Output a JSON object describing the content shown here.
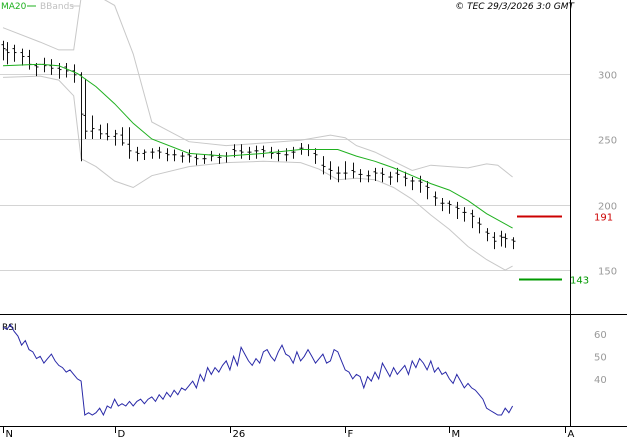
{
  "header": {
    "legend_ma": "MA20",
    "legend_bb": "BBands",
    "copyright": "© TEC 29/3/2026 3:0 GMT"
  },
  "colors": {
    "ma20": "#1fb01f",
    "bbands": "#c8c8c8",
    "price_bars": "#111111",
    "rsi": "#2a2aa8",
    "resistance": "#cc0000",
    "support": "#009900",
    "grid": "#d4d4d4",
    "axis": "#000000",
    "tick_text": "#999999"
  },
  "chart_data": [
    {
      "type": "line",
      "name": "price-panel",
      "y_ticks": [
        150,
        200,
        250,
        300
      ],
      "ylim": [
        118,
        350
      ],
      "x_tick_labels": [
        "N",
        "D",
        "26",
        "F",
        "M",
        "A"
      ],
      "x_tick_days": [
        0,
        30,
        61,
        92,
        120,
        151
      ],
      "series": [
        {
          "name": "MA20",
          "x": [
            0,
            10,
            15,
            20,
            25,
            30,
            35,
            40,
            50,
            60,
            70,
            80,
            90,
            95,
            100,
            105,
            110,
            115,
            120,
            125,
            130,
            137
          ],
          "values": [
            306,
            307,
            306,
            300,
            290,
            277,
            262,
            250,
            239,
            237,
            239,
            242,
            242,
            237,
            233,
            228,
            222,
            216,
            211,
            203,
            193,
            182
          ]
        },
        {
          "name": "BBands upper",
          "x": [
            0,
            10,
            15,
            19,
            21,
            25,
            30,
            35,
            40,
            50,
            60,
            70,
            80,
            88,
            92,
            95,
            100,
            105,
            110,
            115,
            120,
            125,
            130,
            133,
            137
          ],
          "values": [
            335,
            324,
            318,
            318,
            358,
            360,
            352,
            315,
            263,
            248,
            245,
            247,
            249,
            253,
            251,
            245,
            240,
            233,
            226,
            230,
            229,
            228,
            231,
            230,
            221
          ]
        },
        {
          "name": "BBands lower",
          "x": [
            0,
            10,
            15,
            19,
            21,
            25,
            30,
            35,
            40,
            50,
            60,
            70,
            80,
            85,
            90,
            95,
            100,
            105,
            110,
            115,
            120,
            125,
            130,
            135,
            137
          ],
          "values": [
            297,
            298,
            295,
            283,
            235,
            229,
            218,
            213,
            222,
            229,
            232,
            233,
            232,
            227,
            219,
            220,
            219,
            213,
            204,
            192,
            181,
            168,
            158,
            150,
            153
          ]
        }
      ],
      "ohlc": {
        "x": [
          0,
          1,
          3,
          5,
          7,
          9,
          11,
          13,
          15,
          17,
          19,
          21,
          22,
          24,
          26,
          28,
          30,
          32,
          34,
          36,
          38,
          40,
          42,
          44,
          46,
          48,
          50,
          52,
          54,
          56,
          58,
          60,
          62,
          64,
          66,
          68,
          70,
          72,
          74,
          76,
          78,
          80,
          82,
          84,
          86,
          88,
          90,
          92,
          94,
          96,
          98,
          100,
          102,
          104,
          106,
          108,
          110,
          112,
          114,
          116,
          118,
          120,
          122,
          124,
          126,
          128,
          130,
          132,
          134,
          135,
          137
        ],
        "open": [
          322,
          318,
          319,
          316,
          313,
          306,
          307,
          306,
          304,
          305,
          302,
          299,
          268,
          256,
          257,
          254,
          252,
          253,
          246,
          240,
          239,
          240,
          241,
          239,
          238,
          237,
          238,
          236,
          235,
          238,
          236,
          237,
          242,
          241,
          240,
          241,
          242,
          240,
          239,
          238,
          240,
          243,
          242,
          239,
          230,
          227,
          224,
          224,
          226,
          223,
          222,
          225,
          224,
          221,
          224,
          221,
          218,
          218,
          214,
          206,
          201,
          201,
          198,
          194,
          193,
          186,
          179,
          175,
          176,
          175,
          173
        ],
        "high": [
          325,
          324,
          322,
          319,
          318,
          308,
          312,
          311,
          308,
          308,
          307,
          301,
          296,
          268,
          261,
          262,
          257,
          259,
          259,
          244,
          242,
          243,
          244,
          243,
          242,
          240,
          242,
          239,
          238,
          241,
          239,
          240,
          246,
          246,
          244,
          245,
          245,
          244,
          242,
          243,
          244,
          247,
          246,
          243,
          237,
          233,
          229,
          233,
          232,
          227,
          226,
          228,
          228,
          225,
          228,
          225,
          221,
          222,
          218,
          210,
          205,
          203,
          202,
          198,
          196,
          190,
          182,
          179,
          180,
          178,
          175
        ],
        "low": [
          310,
          307,
          309,
          306,
          303,
          298,
          301,
          299,
          296,
          297,
          293,
          233,
          250,
          250,
          250,
          249,
          245,
          245,
          235,
          233,
          234,
          235,
          235,
          233,
          233,
          232,
          232,
          230,
          231,
          233,
          231,
          232,
          236,
          235,
          234,
          235,
          236,
          235,
          233,
          233,
          235,
          238,
          237,
          231,
          223,
          219,
          217,
          219,
          220,
          217,
          217,
          218,
          217,
          215,
          217,
          214,
          211,
          209,
          204,
          199,
          195,
          193,
          189,
          187,
          182,
          178,
          172,
          166,
          168,
          167,
          166
        ],
        "close": [
          319,
          316,
          316,
          313,
          307,
          305,
          306,
          304,
          303,
          302,
          299,
          269,
          256,
          258,
          254,
          252,
          254,
          247,
          241,
          239,
          240,
          240,
          240,
          238,
          238,
          237,
          237,
          235,
          235,
          237,
          236,
          237,
          241,
          240,
          240,
          241,
          241,
          239,
          239,
          238,
          240,
          243,
          242,
          238,
          229,
          226,
          224,
          224,
          225,
          223,
          222,
          224,
          223,
          221,
          223,
          220,
          218,
          217,
          213,
          205,
          201,
          200,
          197,
          194,
          191,
          185,
          178,
          172,
          175,
          174,
          172
        ]
      },
      "levels": [
        {
          "name": "resistance",
          "value": 191,
          "label": "191"
        },
        {
          "name": "support",
          "value": 143,
          "label": "143"
        }
      ]
    },
    {
      "type": "line",
      "name": "rsi-panel",
      "label": "RSI",
      "y_ticks": [
        40,
        50,
        60
      ],
      "ylim": [
        20,
        67
      ],
      "series": [
        {
          "name": "RSI",
          "x": [
            0,
            1,
            2,
            3,
            4,
            5,
            6,
            7,
            8,
            9,
            10,
            11,
            12,
            13,
            14,
            15,
            16,
            17,
            18,
            19,
            20,
            21,
            22,
            23,
            24,
            25,
            26,
            27,
            28,
            29,
            30,
            31,
            32,
            33,
            34,
            35,
            36,
            37,
            38,
            39,
            40,
            41,
            42,
            43,
            44,
            45,
            46,
            47,
            48,
            49,
            50,
            51,
            52,
            53,
            54,
            55,
            56,
            57,
            58,
            59,
            60,
            61,
            62,
            63,
            64,
            65,
            66,
            67,
            68,
            69,
            70,
            71,
            72,
            73,
            74,
            75,
            76,
            77,
            78,
            79,
            80,
            81,
            82,
            83,
            84,
            85,
            86,
            87,
            88,
            89,
            90,
            91,
            92,
            93,
            94,
            95,
            96,
            97,
            98,
            99,
            100,
            101,
            102,
            103,
            104,
            105,
            106,
            107,
            108,
            109,
            110,
            111,
            112,
            113,
            114,
            115,
            116,
            117,
            118,
            119,
            120,
            121,
            122,
            123,
            124,
            125,
            126,
            127,
            128,
            129,
            130,
            131,
            132,
            133,
            134,
            135,
            136,
            137
          ],
          "values": [
            63,
            62,
            64,
            61,
            59,
            55,
            57,
            53,
            52,
            49,
            50,
            47,
            49,
            51,
            48,
            46,
            45,
            43,
            44,
            42,
            40,
            39,
            24,
            25,
            24,
            25,
            27,
            24,
            28,
            27,
            31,
            28,
            29,
            28,
            30,
            28,
            30,
            31,
            29,
            31,
            32,
            30,
            33,
            31,
            34,
            32,
            35,
            33,
            36,
            35,
            37,
            39,
            36,
            42,
            39,
            45,
            42,
            45,
            43,
            46,
            48,
            44,
            50,
            46,
            54,
            51,
            48,
            46,
            49,
            47,
            52,
            53,
            50,
            48,
            52,
            55,
            51,
            50,
            47,
            52,
            48,
            50,
            53,
            50,
            47,
            49,
            51,
            47,
            48,
            53,
            52,
            48,
            44,
            43,
            40,
            42,
            41,
            36,
            41,
            39,
            43,
            40,
            47,
            44,
            41,
            45,
            42,
            44,
            46,
            42,
            48,
            45,
            49,
            47,
            44,
            48,
            43,
            45,
            42,
            43,
            40,
            38,
            42,
            39,
            36,
            38,
            36,
            35,
            33,
            31,
            27,
            26,
            25,
            24,
            24,
            27,
            25,
            28
          ]
        }
      ]
    }
  ]
}
